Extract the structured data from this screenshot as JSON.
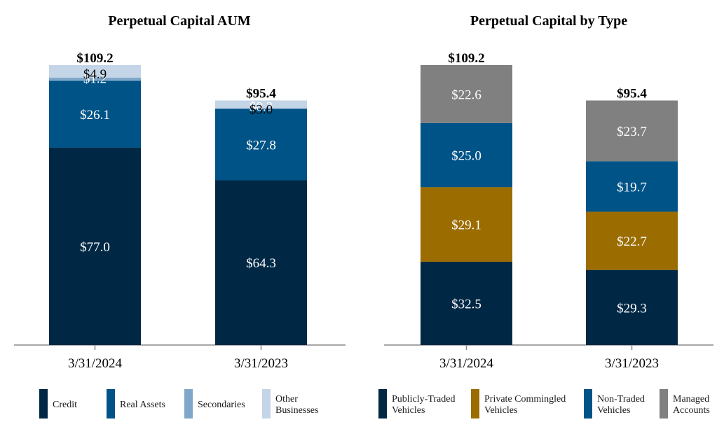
{
  "chart_data": [
    {
      "type": "bar",
      "stacked": true,
      "title": "Perpetual Capital AUM",
      "categories": [
        "3/31/2024",
        "3/31/2023"
      ],
      "totals": [
        "$109.2",
        "$95.4"
      ],
      "ylim": [
        0,
        109.2
      ],
      "series": [
        {
          "name": "Credit",
          "values": [
            77.0,
            64.3
          ],
          "labels": [
            "$77.0",
            "$64.3"
          ],
          "color": "#002845",
          "label_color": "#ffffff"
        },
        {
          "name": "Real Assets",
          "values": [
            26.1,
            27.8
          ],
          "labels": [
            "$26.1",
            "$27.8"
          ],
          "color": "#005387",
          "label_color": "#ffffff"
        },
        {
          "name": "Secondaries",
          "values": [
            1.2,
            0.3
          ],
          "labels": [
            "$1.2",
            "$0.3"
          ],
          "color": "#7FA7C9",
          "label_color": "#ffffff"
        },
        {
          "name": "Other Businesses",
          "values": [
            4.9,
            3.0
          ],
          "labels": [
            "$4.9",
            "$3.0"
          ],
          "color": "#C3D5E6",
          "label_color": "#000000"
        }
      ],
      "legend": [
        "Credit",
        "Real Assets",
        "Secondaries",
        "Other Businesses"
      ]
    },
    {
      "type": "bar",
      "stacked": true,
      "title": "Perpetual Capital by Type",
      "categories": [
        "3/31/2024",
        "3/31/2023"
      ],
      "totals": [
        "$109.2",
        "$95.4"
      ],
      "ylim": [
        0,
        109.2
      ],
      "series": [
        {
          "name": "Publicly-Traded Vehicles",
          "values": [
            32.5,
            29.3
          ],
          "labels": [
            "$32.5",
            "$29.3"
          ],
          "color": "#002845",
          "label_color": "#ffffff"
        },
        {
          "name": "Private Commingled Vehicles",
          "values": [
            29.1,
            22.7
          ],
          "labels": [
            "$29.1",
            "$22.7"
          ],
          "color": "#9B6C00",
          "label_color": "#ffffff"
        },
        {
          "name": "Non-Traded Vehicles",
          "values": [
            25.0,
            19.7
          ],
          "labels": [
            "$25.0",
            "$19.7"
          ],
          "color": "#005387",
          "label_color": "#ffffff"
        },
        {
          "name": "Managed Accounts",
          "values": [
            22.6,
            23.7
          ],
          "labels": [
            "$22.6",
            "$23.7"
          ],
          "color": "#808080",
          "label_color": "#ffffff"
        }
      ],
      "legend": [
        "Publicly-Traded Vehicles",
        "Private Commingled Vehicles",
        "Non-Traded Vehicles",
        "Managed Accounts"
      ]
    }
  ]
}
